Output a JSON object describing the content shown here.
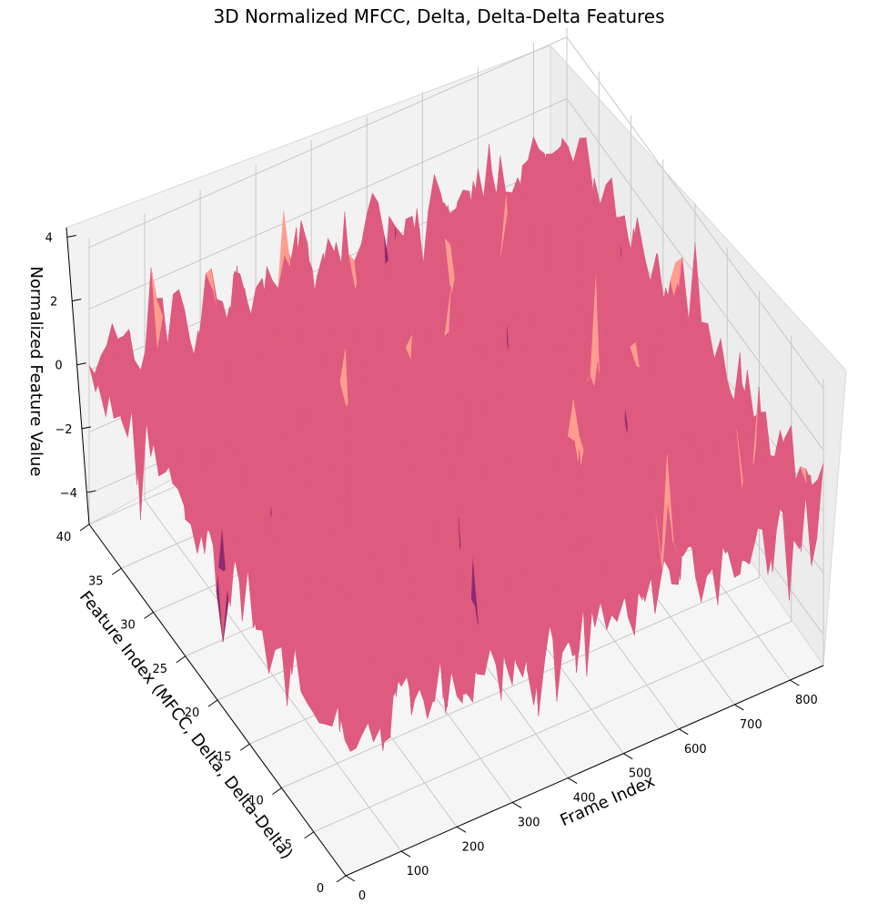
{
  "chart_data": {
    "type": "surface3d",
    "title": "3D Normalized MFCC, Delta, Delta-Delta Features",
    "xlabel": "Frame Index",
    "ylabel": "Feature Index (MFCC, Delta, Delta-Delta)",
    "zlabel": "Normalized Feature Value",
    "xlim": [
      0,
      860
    ],
    "ylim": [
      0,
      40
    ],
    "zlim": [
      -5,
      4.3
    ],
    "x_ticks": [
      "0",
      "100",
      "200",
      "300",
      "400",
      "500",
      "600",
      "700",
      "800"
    ],
    "y_ticks": [
      "0",
      "5",
      "10",
      "15",
      "20",
      "25",
      "30",
      "35",
      "40"
    ],
    "z_ticks": [
      "−4",
      "−2",
      "0",
      "2",
      "4"
    ],
    "colormap": "magma",
    "colors": {
      "surface_main": "#de5a7e",
      "surface_high": "#ff9d8f",
      "surface_low": "#8c2a72",
      "surface_min": "#5a0f63",
      "pane": "#f2f2f2",
      "grid": "#c8c8c8"
    },
    "grid": true,
    "description_values": {
      "typical_range": [
        -2,
        2
      ],
      "min_observed": -4.7,
      "max_observed": 4.2
    }
  }
}
